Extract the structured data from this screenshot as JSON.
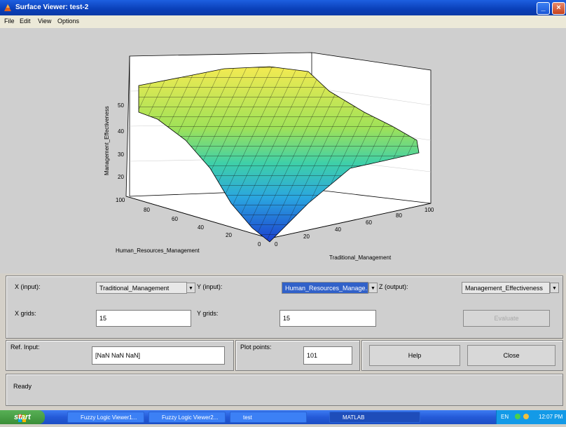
{
  "window": {
    "title": "Surface Viewer: test-2",
    "menu": [
      "File",
      "Edit",
      "View",
      "Options"
    ]
  },
  "plot": {
    "zlabel": "Management_Effectiveness",
    "xlabel": "Human_Resources_Management",
    "ylabel": "Traditional_Management",
    "z_ticks": [
      "50",
      "40",
      "30",
      "20"
    ],
    "x_ticks": [
      "100",
      "80",
      "60",
      "40",
      "20",
      "0"
    ],
    "y_ticks": [
      "0",
      "20",
      "40",
      "60",
      "80",
      "100"
    ]
  },
  "controls": {
    "x_label": "X (input):",
    "x_value": "Traditional_Management",
    "y_label": "Y (input):",
    "y_value": "Human_Resources_Manage...",
    "z_label": "Z (output):",
    "z_value": "Management_Effectiveness",
    "xgrids_label": "X grids:",
    "xgrids_value": "15",
    "ygrids_label": "Y grids:",
    "ygrids_value": "15",
    "evaluate_label": "Evaluate",
    "ref_input_label": "Ref. Input:",
    "ref_input_value": "[NaN NaN NaN]",
    "plot_points_label": "Plot points:",
    "plot_points_value": "101",
    "help_label": "Help",
    "close_label": "Close",
    "status_label": "Ready"
  },
  "taskbar": {
    "start_label": "start",
    "items": [
      "Fuzzy Logic Viewer1...",
      "Fuzzy Logic Viewer2...",
      "test",
      "MATLAB"
    ],
    "tray": {
      "lang": "EN",
      "time": "12:07 PM"
    }
  },
  "colors": {
    "titlebar": "#0a3fb8",
    "selected": "#3161c9",
    "surface_high": "#f2e85a",
    "surface_low": "#1f4fd1"
  }
}
